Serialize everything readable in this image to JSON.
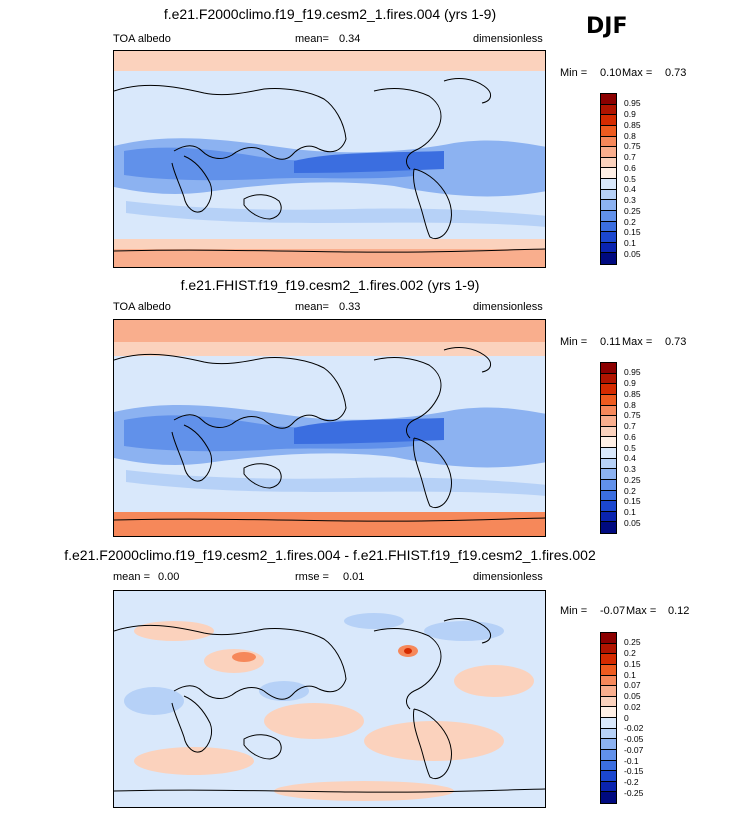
{
  "season": "DJF",
  "chart_data": [
    {
      "type": "heatmap",
      "title": "f.e21.F2000climo.f19_f19.cesm2_1.fires.004 (yrs 1-9)",
      "left_label": "TOA albedo",
      "mean_label": "mean=",
      "mean_value": "0.34",
      "units": "dimensionless",
      "min_label": "Min =",
      "min_value": "0.10",
      "max_label": "Max =",
      "max_value": "0.73",
      "colorbar": {
        "levels": [
          "0.95",
          "0.9",
          "0.85",
          "0.8",
          "0.75",
          "0.7",
          "0.6",
          "0.5",
          "0.4",
          "0.3",
          "0.25",
          "0.2",
          "0.15",
          "0.1",
          "0.05"
        ],
        "colors": [
          "#8b0000",
          "#b01400",
          "#d52b00",
          "#ee5b1f",
          "#f6885a",
          "#f9ae8d",
          "#fbd2bd",
          "#fff0e6",
          "#d9e8fb",
          "#b6d1f7",
          "#8cb2f1",
          "#6191ea",
          "#3b6ee0",
          "#1b47cf",
          "#0a24b0",
          "#000a80"
        ]
      }
    },
    {
      "type": "heatmap",
      "title": "f.e21.FHIST.f19_f19.cesm2_1.fires.002 (yrs 1-9)",
      "left_label": "TOA albedo",
      "mean_label": "mean=",
      "mean_value": "0.33",
      "units": "dimensionless",
      "min_label": "Min =",
      "min_value": "0.11",
      "max_label": "Max =",
      "max_value": "0.73",
      "colorbar": {
        "levels": [
          "0.95",
          "0.9",
          "0.85",
          "0.8",
          "0.75",
          "0.7",
          "0.6",
          "0.5",
          "0.4",
          "0.3",
          "0.25",
          "0.2",
          "0.15",
          "0.1",
          "0.05"
        ],
        "colors": [
          "#8b0000",
          "#b01400",
          "#d52b00",
          "#ee5b1f",
          "#f6885a",
          "#f9ae8d",
          "#fbd2bd",
          "#fff0e6",
          "#d9e8fb",
          "#b6d1f7",
          "#8cb2f1",
          "#6191ea",
          "#3b6ee0",
          "#1b47cf",
          "#0a24b0",
          "#000a80"
        ]
      }
    },
    {
      "type": "heatmap",
      "title": "f.e21.F2000climo.f19_f19.cesm2_1.fires.004 - f.e21.FHIST.f19_f19.cesm2_1.fires.002",
      "left_label": "mean =",
      "mean_value": "0.00",
      "rmse_label": "rmse =",
      "rmse_value": "0.01",
      "units": "dimensionless",
      "min_label": "Min =",
      "min_value": "-0.07",
      "max_label": "Max =",
      "max_value": "0.12",
      "colorbar": {
        "levels": [
          "0.25",
          "0.2",
          "0.15",
          "0.1",
          "0.07",
          "0.05",
          "0.02",
          "0",
          "-0.02",
          "-0.05",
          "-0.07",
          "-0.1",
          "-0.15",
          "-0.2",
          "-0.25"
        ],
        "colors": [
          "#8b0000",
          "#b01400",
          "#d52b00",
          "#ee5b1f",
          "#f6885a",
          "#f9ae8d",
          "#fbd2bd",
          "#fff0e6",
          "#d9e8fb",
          "#b6d1f7",
          "#8cb2f1",
          "#6191ea",
          "#3b6ee0",
          "#1b47cf",
          "#0a24b0",
          "#000a80"
        ]
      }
    }
  ]
}
